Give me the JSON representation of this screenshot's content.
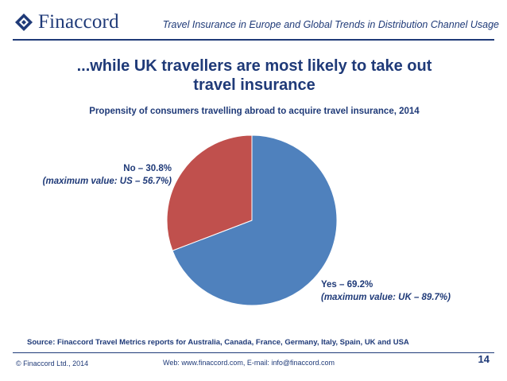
{
  "header": {
    "logo_text": "Finaccord",
    "title": "Travel Insurance in Europe and Global Trends in Distribution Channel Usage"
  },
  "slide": {
    "title_line1": "...while UK travellers are most likely to take out",
    "title_line2": "travel insurance"
  },
  "chart_data": {
    "type": "pie",
    "title": "Propensity of consumers travelling abroad to acquire travel insurance, 2014",
    "slices": [
      {
        "name": "Yes",
        "value": 69.2,
        "color": "#4f81bd",
        "label": "Yes – 69.2%",
        "note": "(maximum value: UK – 89.7%)"
      },
      {
        "name": "No",
        "value": 30.8,
        "color": "#c0504d",
        "label": "No – 30.8%",
        "note": "(maximum value: US – 56.7%)"
      }
    ]
  },
  "source": "Source: Finaccord Travel Metrics reports for Australia, Canada, France, Germany, Italy, Spain, UK and USA",
  "footer": {
    "copyright": "© Finaccord Ltd., 2014",
    "contact": "Web: www.finaccord.com, E-mail: info@finaccord.com",
    "page": "14"
  },
  "colors": {
    "brand": "#1f3a78"
  }
}
